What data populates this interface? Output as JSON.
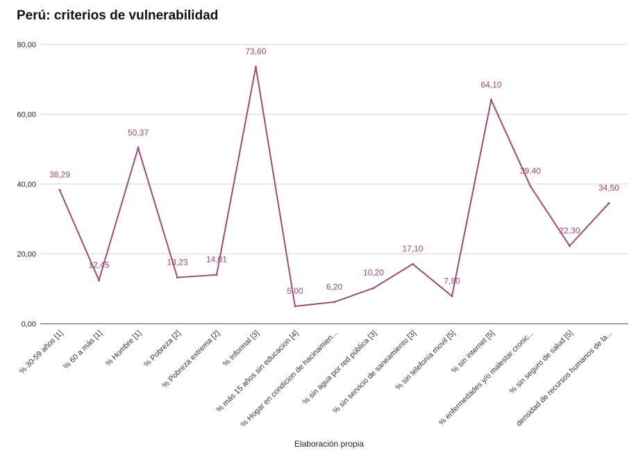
{
  "chart_data": {
    "type": "line",
    "title": "Perú: criterios de vulnerabilidad",
    "xlabel": "Elaboración propia",
    "ylabel": "",
    "ylim": [
      0,
      80
    ],
    "yticks": [
      "0,00",
      "20,00",
      "40,00",
      "60,00",
      "80,00"
    ],
    "grid": true,
    "line_color": "#9e4a72",
    "categories": [
      "% 30-59 años [1]",
      "% 60 a más [1]",
      "% Hombre [1]",
      "% Pobreza [2]",
      "% Pobreza extrema [2]",
      "% Informal [3]",
      "% más 15 años sin educacion [4]",
      "% Hogar en condicion de hacinamien...",
      "% sin agua por red pública [3]",
      "% sin servicio de saneamiento [3]",
      "% sin telefonía movil [5]",
      "% sin internet [5]",
      "% enfermedades y/o malestar cronic...",
      "% sin seguro de salud [5]",
      "densidad de recursos humanos de la..."
    ],
    "values": [
      38.29,
      12.45,
      50.37,
      13.23,
      14.01,
      73.6,
      5.0,
      6.2,
      10.2,
      17.1,
      7.9,
      64.1,
      39.4,
      22.3,
      34.5
    ],
    "value_labels": [
      "38,29",
      "12,45",
      "50,37",
      "13,23",
      "14,01",
      "73,60",
      "5,00",
      "6,20",
      "10,20",
      "17,10",
      "7,90",
      "64,10",
      "39,40",
      "22,30",
      "34,50"
    ]
  }
}
